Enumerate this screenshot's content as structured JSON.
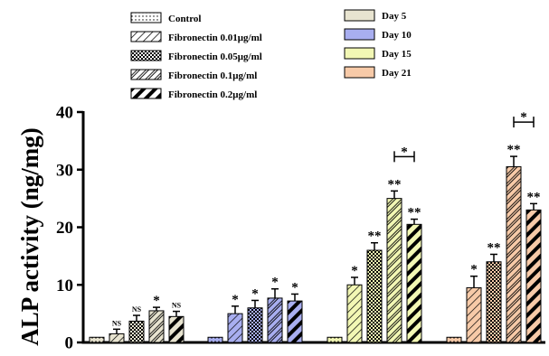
{
  "chart_data": {
    "type": "bar",
    "ylabel": "ALP activity (ng/mg)",
    "ylim": [
      0,
      40
    ],
    "yticks": [
      "0",
      "10",
      "20",
      "30",
      "40"
    ],
    "treatments": [
      {
        "name": "Control",
        "pattern": "dots"
      },
      {
        "name": "Fibronectin 0.01μg/ml",
        "pattern": "thin-diag"
      },
      {
        "name": "Fibronectin 0.05μg/ml",
        "pattern": "checker"
      },
      {
        "name": "Fibronectin 0.1μg/ml",
        "pattern": "double-diag"
      },
      {
        "name": "Fibronectin 0.2μg/ml",
        "pattern": "thick-diag"
      }
    ],
    "series": [
      {
        "name": "Day 5",
        "color": "#e8e4d0",
        "values": [
          0.9,
          1.5,
          3.7,
          5.5,
          4.5
        ],
        "errors": [
          0.1,
          0.8,
          1.0,
          0.6,
          0.9
        ],
        "labels": [
          "",
          "NS",
          "NS",
          "*",
          "NS"
        ]
      },
      {
        "name": "Day 10",
        "color": "#a8aef0",
        "values": [
          0.9,
          5.0,
          6.0,
          7.7,
          7.2
        ],
        "errors": [
          0.1,
          1.3,
          1.3,
          1.6,
          1.2
        ],
        "labels": [
          "",
          "*",
          "*",
          "*",
          "*"
        ]
      },
      {
        "name": "Day 15",
        "color": "#f2f7b4",
        "values": [
          0.9,
          10.0,
          16.0,
          25.0,
          20.5
        ],
        "errors": [
          0.1,
          1.3,
          1.3,
          1.3,
          0.9
        ],
        "labels": [
          "",
          "*",
          "**",
          "**",
          "**"
        ]
      },
      {
        "name": "Day 21",
        "color": "#f7caa8",
        "values": [
          0.9,
          9.5,
          14.0,
          30.5,
          23.0
        ],
        "errors": [
          0.1,
          2.0,
          1.3,
          1.8,
          1.1
        ],
        "labels": [
          "",
          "*",
          "**",
          "**",
          "**"
        ]
      }
    ],
    "comparisons": [
      {
        "series": 2,
        "from": 3,
        "to": 4,
        "label": "*"
      },
      {
        "series": 3,
        "from": 3,
        "to": 4,
        "label": "*"
      }
    ],
    "legend_placement": "top",
    "grid": false
  }
}
